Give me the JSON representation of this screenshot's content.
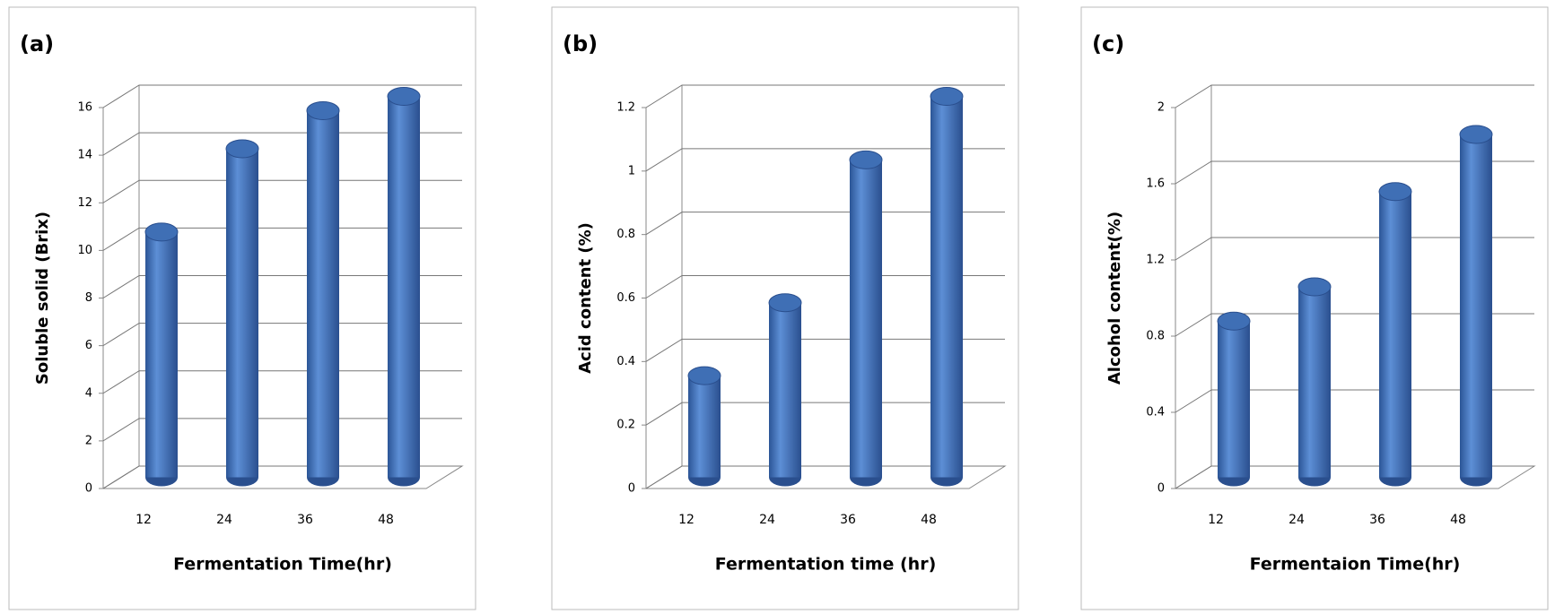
{
  "chart_data": [
    {
      "type": "bar",
      "panel_label": "(a)",
      "y_label": "Soluble solid  (Brix)",
      "x_label": "Fermentation Time(hr)",
      "categories": [
        "12",
        "24",
        "36",
        "48"
      ],
      "values": [
        10.3,
        13.8,
        15.4,
        16.0
      ],
      "color": "#3f6fb5",
      "ylim": [
        0,
        16
      ],
      "yticks": [
        0,
        2,
        4,
        6,
        8,
        10,
        12,
        14,
        16
      ],
      "grid": true
    },
    {
      "type": "bar",
      "panel_label": "(b)",
      "y_label": "Acid content (%)",
      "x_label": "Fermentation time (hr)",
      "categories": [
        "12",
        "24",
        "36",
        "48"
      ],
      "values": [
        0.32,
        0.55,
        1.0,
        1.2
      ],
      "color": "#3f6fb5",
      "ylim": [
        0,
        1.2
      ],
      "yticks": [
        0,
        0.2,
        0.4,
        0.6,
        0.8,
        1,
        1.2
      ],
      "grid": true
    },
    {
      "type": "bar",
      "panel_label": "(c)",
      "y_label": "Alcohol content(%)",
      "x_label": "Fermentaion Time(hr)",
      "categories": [
        "12",
        "24",
        "36",
        "48"
      ],
      "values": [
        0.82,
        1.0,
        1.5,
        1.8
      ],
      "color": "#3f6fb5",
      "ylim": [
        0,
        2
      ],
      "yticks": [
        0,
        0.4,
        0.8,
        1.2,
        1.6,
        2
      ],
      "grid": true
    }
  ]
}
